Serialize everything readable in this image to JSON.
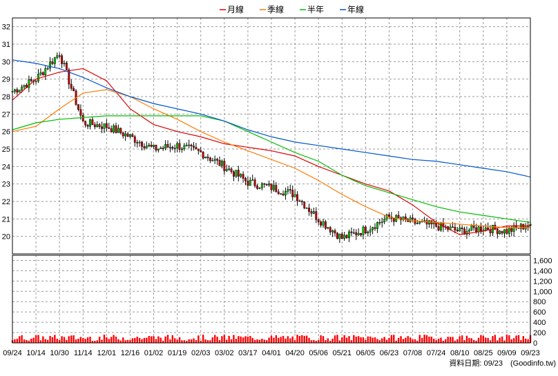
{
  "legend": [
    {
      "label": "月線",
      "color": "#dd0000"
    },
    {
      "label": "季線",
      "color": "#ff7a00"
    },
    {
      "label": "半年",
      "color": "#00bb00"
    },
    {
      "label": "年線",
      "color": "#0055cc"
    }
  ],
  "footer": {
    "date_label": "資料日期: 09/23",
    "source": "(Goodinfo.tw)"
  },
  "colors": {
    "up": "#00cc00",
    "down": "#cc0000",
    "volume": "#ff0000",
    "grid": "#999999",
    "frame": "#000000"
  },
  "chart_data": {
    "type": "candlestick",
    "price_axis": {
      "min": 19,
      "max": 32.5,
      "ticks": [
        20,
        21,
        22,
        23,
        24,
        25,
        26,
        27,
        28,
        29,
        30,
        31,
        32
      ]
    },
    "volume_axis": {
      "min": 0,
      "max": 1700,
      "ticks": [
        0,
        200,
        400,
        600,
        800,
        1000,
        1200,
        1400,
        1600
      ],
      "tick_labels": [
        "0",
        "200",
        "400",
        "600",
        "800",
        "1,000",
        "1,200",
        "1,400",
        "1,600"
      ]
    },
    "x_tick_labels": [
      "09/24",
      "10/14",
      "10/30",
      "11/14",
      "12/01",
      "12/16",
      "01/02",
      "01/19",
      "02/03",
      "03/02",
      "03/17",
      "04/01",
      "04/20",
      "05/06",
      "05/21",
      "06/05",
      "06/23",
      "07/08",
      "07/24",
      "08/10",
      "08/25",
      "09/09",
      "09/23"
    ],
    "close_anchors": [
      {
        "label": "09/24",
        "close": 28.3
      },
      {
        "label": "10/14",
        "close": 29.0
      },
      {
        "label": "10/30",
        "close": 30.5
      },
      {
        "label": "11/14",
        "close": 26.5
      },
      {
        "label": "12/01",
        "close": 26.3
      },
      {
        "label": "12/16",
        "close": 25.7
      },
      {
        "label": "01/02",
        "close": 25.0
      },
      {
        "label": "01/19",
        "close": 25.2
      },
      {
        "label": "02/03",
        "close": 24.8
      },
      {
        "label": "03/02",
        "close": 24.0
      },
      {
        "label": "03/17",
        "close": 23.1
      },
      {
        "label": "04/01",
        "close": 22.8
      },
      {
        "label": "04/20",
        "close": 22.4
      },
      {
        "label": "05/06",
        "close": 21.0
      },
      {
        "label": "05/21",
        "close": 19.9
      },
      {
        "label": "06/05",
        "close": 20.4
      },
      {
        "label": "06/23",
        "close": 21.1
      },
      {
        "label": "07/08",
        "close": 20.8
      },
      {
        "label": "07/24",
        "close": 20.6
      },
      {
        "label": "08/10",
        "close": 20.3
      },
      {
        "label": "08/25",
        "close": 20.5
      },
      {
        "label": "09/09",
        "close": 20.3
      },
      {
        "label": "09/23",
        "close": 20.7
      }
    ],
    "moving_averages": [
      {
        "name": "月線",
        "color": "#dd0000",
        "points": [
          [
            0,
            27.8
          ],
          [
            1,
            29.0
          ],
          [
            2,
            29.4
          ],
          [
            3,
            29.6
          ],
          [
            4,
            28.9
          ],
          [
            5,
            27.3
          ],
          [
            6,
            26.4
          ],
          [
            7,
            26.0
          ],
          [
            8,
            25.7
          ],
          [
            9,
            25.3
          ],
          [
            10,
            25.1
          ],
          [
            11,
            24.9
          ],
          [
            12,
            24.6
          ],
          [
            13,
            24.0
          ],
          [
            14,
            23.5
          ],
          [
            15,
            23.0
          ],
          [
            16,
            22.6
          ],
          [
            17,
            21.8
          ],
          [
            18,
            20.8
          ],
          [
            19,
            20.1
          ],
          [
            20,
            20.3
          ],
          [
            21,
            20.6
          ],
          [
            22,
            20.6
          ]
        ]
      },
      {
        "name": "季線",
        "color": "#ff7a00",
        "points": [
          [
            0,
            26.0
          ],
          [
            1,
            26.3
          ],
          [
            2,
            27.3
          ],
          [
            3,
            28.2
          ],
          [
            4,
            28.4
          ],
          [
            5,
            28.0
          ],
          [
            6,
            27.3
          ],
          [
            7,
            26.7
          ],
          [
            8,
            26.0
          ],
          [
            9,
            25.4
          ],
          [
            10,
            24.9
          ],
          [
            11,
            24.4
          ],
          [
            12,
            23.9
          ],
          [
            13,
            23.2
          ],
          [
            14,
            22.4
          ],
          [
            15,
            21.7
          ],
          [
            16,
            21.1
          ],
          [
            17,
            20.9
          ],
          [
            18,
            20.8
          ],
          [
            19,
            20.7
          ],
          [
            20,
            20.6
          ],
          [
            21,
            20.5
          ],
          [
            22,
            20.5
          ]
        ]
      },
      {
        "name": "半年",
        "color": "#00bb00",
        "points": [
          [
            0,
            26.1
          ],
          [
            1,
            26.5
          ],
          [
            2,
            26.7
          ],
          [
            3,
            26.8
          ],
          [
            4,
            26.9
          ],
          [
            5,
            26.9
          ],
          [
            6,
            26.9
          ],
          [
            7,
            26.9
          ],
          [
            8,
            26.9
          ],
          [
            9,
            26.6
          ],
          [
            10,
            26.0
          ],
          [
            11,
            25.4
          ],
          [
            12,
            24.8
          ],
          [
            13,
            24.3
          ],
          [
            14,
            23.5
          ],
          [
            15,
            22.9
          ],
          [
            16,
            22.5
          ],
          [
            17,
            22.1
          ],
          [
            18,
            21.7
          ],
          [
            19,
            21.4
          ],
          [
            20,
            21.2
          ],
          [
            21,
            21.0
          ],
          [
            22,
            20.8
          ]
        ]
      },
      {
        "name": "年線",
        "color": "#0055cc",
        "points": [
          [
            0,
            30.1
          ],
          [
            1,
            29.9
          ],
          [
            2,
            29.6
          ],
          [
            3,
            29.1
          ],
          [
            4,
            28.5
          ],
          [
            5,
            28.0
          ],
          [
            6,
            27.6
          ],
          [
            7,
            27.3
          ],
          [
            8,
            27.0
          ],
          [
            9,
            26.6
          ],
          [
            10,
            26.1
          ],
          [
            11,
            25.7
          ],
          [
            12,
            25.4
          ],
          [
            13,
            25.2
          ],
          [
            14,
            25.0
          ],
          [
            15,
            24.8
          ],
          [
            16,
            24.6
          ],
          [
            17,
            24.4
          ],
          [
            18,
            24.3
          ],
          [
            19,
            24.1
          ],
          [
            20,
            23.9
          ],
          [
            21,
            23.7
          ],
          [
            22,
            23.4
          ]
        ]
      }
    ]
  }
}
